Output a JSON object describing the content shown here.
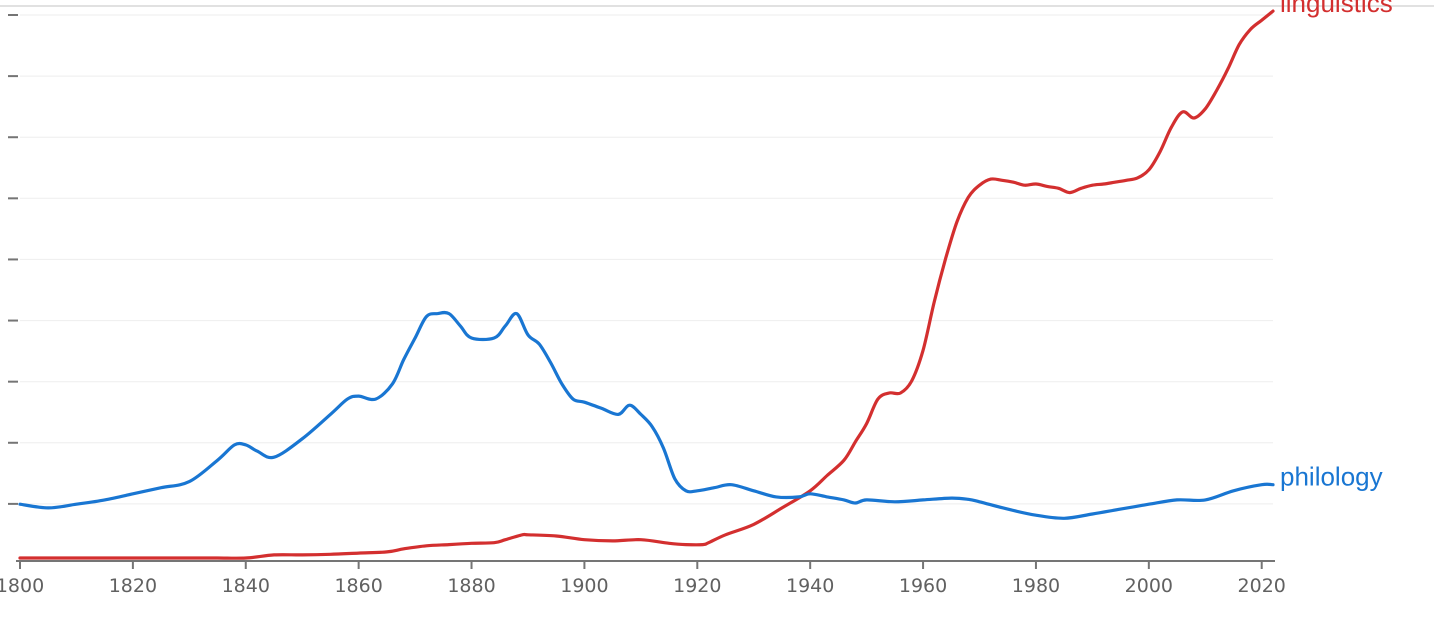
{
  "chart_data": {
    "type": "line",
    "title": "",
    "xlabel": "",
    "ylabel": "",
    "xlim": [
      1800,
      2022
    ],
    "ylim": [
      0,
      9
    ],
    "grid": true,
    "legend": "inline-right",
    "x_ticks": [
      "1800",
      "1820",
      "1840",
      "1860",
      "1880",
      "1900",
      "1920",
      "1940",
      "1960",
      "1980",
      "2000",
      "2020"
    ],
    "series": [
      {
        "name": "linguistics",
        "color": "#d32f2f",
        "x": [
          1800,
          1805,
          1810,
          1820,
          1830,
          1835,
          1840,
          1845,
          1850,
          1855,
          1860,
          1865,
          1868,
          1872,
          1876,
          1880,
          1884,
          1886,
          1889,
          1890,
          1895,
          1900,
          1905,
          1910,
          1915,
          1918,
          1921,
          1922,
          1925,
          1930,
          1935,
          1940,
          1943,
          1946,
          1948,
          1950,
          1952,
          1954,
          1956,
          1958,
          1960,
          1962,
          1964,
          1966,
          1968,
          1970,
          1972,
          1974,
          1976,
          1978,
          1980,
          1982,
          1984,
          1986,
          1988,
          1990,
          1992,
          1994,
          1996,
          1998,
          2000,
          2002,
          2004,
          2006,
          2008,
          2010,
          2012,
          2014,
          2016,
          2018,
          2020,
          2022
        ],
        "values": [
          0,
          0,
          0,
          0,
          0,
          0,
          0,
          0.05,
          0.05,
          0.06,
          0.08,
          0.1,
          0.15,
          0.2,
          0.22,
          0.24,
          0.25,
          0.3,
          0.38,
          0.38,
          0.36,
          0.3,
          0.28,
          0.3,
          0.24,
          0.22,
          0.22,
          0.25,
          0.38,
          0.55,
          0.82,
          1.1,
          1.35,
          1.6,
          1.9,
          2.2,
          2.6,
          2.7,
          2.7,
          2.9,
          3.4,
          4.2,
          4.9,
          5.5,
          5.9,
          6.1,
          6.2,
          6.18,
          6.15,
          6.1,
          6.12,
          6.08,
          6.05,
          5.98,
          6.05,
          6.1,
          6.12,
          6.15,
          6.18,
          6.22,
          6.35,
          6.65,
          7.05,
          7.3,
          7.2,
          7.35,
          7.65,
          8.0,
          8.4,
          8.65,
          8.8,
          8.95
        ]
      },
      {
        "name": "philology",
        "color": "#1976d2",
        "x": [
          1800,
          1805,
          1810,
          1815,
          1820,
          1825,
          1830,
          1835,
          1838,
          1840,
          1842,
          1845,
          1850,
          1855,
          1858,
          1860,
          1863,
          1866,
          1868,
          1870,
          1872,
          1874,
          1876,
          1878,
          1880,
          1884,
          1886,
          1888,
          1890,
          1892,
          1894,
          1896,
          1898,
          1900,
          1903,
          1906,
          1908,
          1910,
          1912,
          1914,
          1916,
          1918,
          1920,
          1923,
          1926,
          1930,
          1934,
          1938,
          1940,
          1943,
          1946,
          1948,
          1950,
          1955,
          1960,
          1965,
          1968,
          1970,
          1975,
          1980,
          1985,
          1990,
          1995,
          2000,
          2005,
          2010,
          2015,
          2020,
          2022
        ],
        "values": [
          0.88,
          0.82,
          0.88,
          0.95,
          1.05,
          1.15,
          1.25,
          1.6,
          1.85,
          1.85,
          1.75,
          1.65,
          1.95,
          2.35,
          2.6,
          2.65,
          2.6,
          2.85,
          3.25,
          3.6,
          3.95,
          4.0,
          4.0,
          3.8,
          3.6,
          3.6,
          3.8,
          4.0,
          3.65,
          3.5,
          3.2,
          2.85,
          2.6,
          2.55,
          2.45,
          2.35,
          2.5,
          2.35,
          2.15,
          1.8,
          1.3,
          1.1,
          1.1,
          1.15,
          1.2,
          1.1,
          1.0,
          1.0,
          1.05,
          1.0,
          0.95,
          0.9,
          0.95,
          0.92,
          0.95,
          0.98,
          0.96,
          0.92,
          0.8,
          0.7,
          0.65,
          0.72,
          0.8,
          0.88,
          0.95,
          0.95,
          1.1,
          1.2,
          1.2
        ]
      }
    ]
  }
}
